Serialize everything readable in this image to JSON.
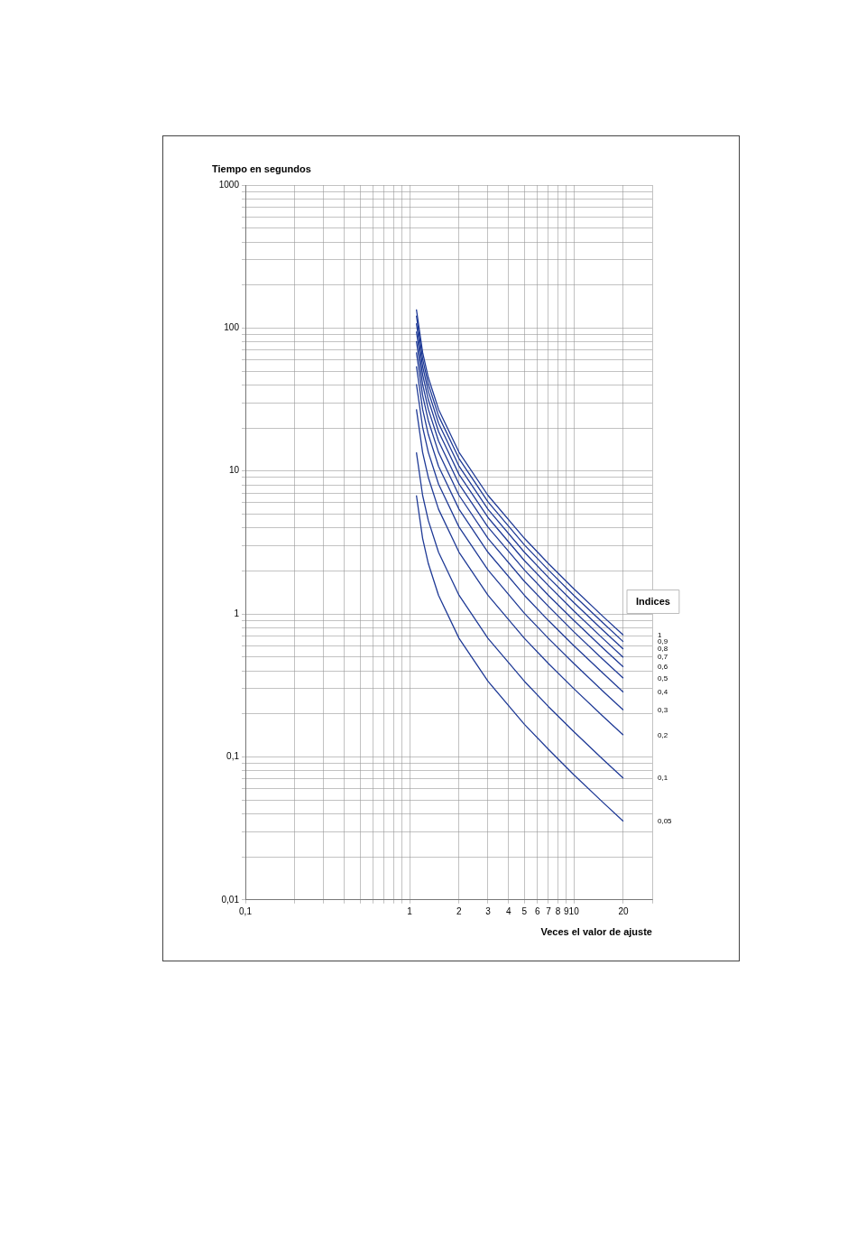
{
  "chart_data": {
    "type": "line",
    "xlabel": "Veces el valor de ajuste",
    "ylabel": "Tiempo en segundos",
    "legend_title": "Indices",
    "log": "xy",
    "grid": true,
    "legend": false,
    "marker": "none",
    "line_style": "solid",
    "x": [
      1.1,
      1.2,
      1.3,
      1.5,
      2,
      3,
      5,
      7,
      10,
      15,
      20
    ],
    "xlim": [
      0.1,
      30
    ],
    "xticks": [
      {
        "value": 0.1,
        "label": "0,1"
      },
      {
        "value": 0.2,
        "label": null
      },
      {
        "value": 0.3,
        "label": null
      },
      {
        "value": 0.4,
        "label": null
      },
      {
        "value": 0.5,
        "label": null
      },
      {
        "value": 0.6,
        "label": null
      },
      {
        "value": 0.7,
        "label": null
      },
      {
        "value": 0.8,
        "label": null
      },
      {
        "value": 0.9,
        "label": null
      },
      1,
      2,
      3,
      4,
      5,
      6,
      7,
      8,
      9,
      10,
      20,
      {
        "value": 30,
        "label": null
      }
    ],
    "ylim": [
      0.01,
      1000
    ],
    "yticks": [
      {
        "value": 0.01,
        "label": "0,01"
      },
      {
        "value": 0.02,
        "label": null
      },
      {
        "value": 0.03,
        "label": null
      },
      {
        "value": 0.04,
        "label": null
      },
      {
        "value": 0.05,
        "label": null
      },
      {
        "value": 0.06,
        "label": null
      },
      {
        "value": 0.07,
        "label": null
      },
      {
        "value": 0.08,
        "label": null
      },
      {
        "value": 0.09,
        "label": null
      },
      {
        "value": 0.1,
        "label": "0,1"
      },
      {
        "value": 0.2,
        "label": null
      },
      {
        "value": 0.3,
        "label": null
      },
      {
        "value": 0.4,
        "label": null
      },
      {
        "value": 0.5,
        "label": null
      },
      {
        "value": 0.6,
        "label": null
      },
      {
        "value": 0.7,
        "label": null
      },
      {
        "value": 0.8,
        "label": null
      },
      {
        "value": 0.9,
        "label": null
      },
      1,
      {
        "value": 2,
        "label": null
      },
      {
        "value": 3,
        "label": null
      },
      {
        "value": 4,
        "label": null
      },
      {
        "value": 5,
        "label": null
      },
      {
        "value": 6,
        "label": null
      },
      {
        "value": 7,
        "label": null
      },
      {
        "value": 8,
        "label": null
      },
      {
        "value": 9,
        "label": null
      },
      10,
      {
        "value": 20,
        "label": null
      },
      {
        "value": 30,
        "label": null
      },
      {
        "value": 40,
        "label": null
      },
      {
        "value": 50,
        "label": null
      },
      {
        "value": 60,
        "label": null
      },
      {
        "value": 70,
        "label": null
      },
      {
        "value": 80,
        "label": null
      },
      {
        "value": 90,
        "label": null
      },
      100,
      {
        "value": 200,
        "label": null
      },
      {
        "value": 300,
        "label": null
      },
      {
        "value": 400,
        "label": null
      },
      {
        "value": 500,
        "label": null
      },
      {
        "value": 600,
        "label": null
      },
      {
        "value": 700,
        "label": null
      },
      {
        "value": 800,
        "label": null
      },
      {
        "value": 900,
        "label": null
      },
      1000
    ],
    "series": [
      {
        "name": "1",
        "color": "#1f3a96",
        "values": [
          135,
          67.5,
          45,
          27,
          13.5,
          6.75,
          3.38,
          2.25,
          1.5,
          0.964,
          0.711
        ]
      },
      {
        "name": "0,9",
        "color": "#1f3a96",
        "values": [
          122,
          60.8,
          40.5,
          24.3,
          12.2,
          6.08,
          3.04,
          2.03,
          1.35,
          0.868,
          0.639
        ]
      },
      {
        "name": "0,8",
        "color": "#1f3a96",
        "values": [
          108,
          54,
          36,
          21.6,
          10.8,
          5.4,
          2.7,
          1.8,
          1.2,
          0.771,
          0.568
        ]
      },
      {
        "name": "0,7",
        "color": "#1f3a96",
        "values": [
          94.5,
          47.3,
          31.5,
          18.9,
          9.45,
          4.73,
          2.36,
          1.58,
          1.05,
          0.675,
          0.497
        ]
      },
      {
        "name": "0,6",
        "color": "#1f3a96",
        "values": [
          81,
          40.5,
          27,
          16.2,
          8.1,
          4.05,
          2.03,
          1.35,
          0.9,
          0.579,
          0.426
        ]
      },
      {
        "name": "0,5",
        "color": "#1f3a96",
        "values": [
          67.5,
          33.8,
          22.5,
          13.5,
          6.75,
          3.38,
          1.69,
          1.13,
          0.75,
          0.482,
          0.355
        ]
      },
      {
        "name": "0,4",
        "color": "#1f3a96",
        "values": [
          54,
          27,
          18,
          10.8,
          5.4,
          2.7,
          1.35,
          0.9,
          0.6,
          0.386,
          0.284
        ]
      },
      {
        "name": "0,3",
        "color": "#1f3a96",
        "values": [
          40.5,
          20.3,
          13.5,
          8.1,
          4.05,
          2.03,
          1.01,
          0.675,
          0.45,
          0.289,
          0.213
        ]
      },
      {
        "name": "0,2",
        "color": "#1f3a96",
        "values": [
          27,
          13.5,
          9,
          5.4,
          2.7,
          1.35,
          0.675,
          0.45,
          0.3,
          0.193,
          0.142
        ]
      },
      {
        "name": "0,1",
        "color": "#1f3a96",
        "values": [
          13.5,
          6.75,
          4.5,
          2.7,
          1.35,
          0.675,
          0.338,
          0.225,
          0.15,
          0.0964,
          0.0711
        ]
      },
      {
        "name": "0,05",
        "color": "#1f3a96",
        "values": [
          6.75,
          3.38,
          2.25,
          1.35,
          0.675,
          0.338,
          0.169,
          0.113,
          0.075,
          0.0482,
          0.0355
        ]
      }
    ]
  }
}
